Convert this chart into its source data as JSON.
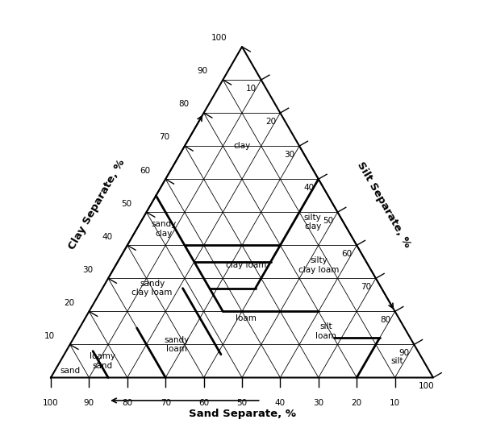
{
  "bg_color": "#ffffff",
  "thin_lw": 0.6,
  "thick_lw": 2.0,
  "outer_lw": 1.5,
  "tick_values": [
    10,
    20,
    30,
    40,
    50,
    60,
    70,
    80,
    90,
    100
  ],
  "soil_labels": [
    {
      "name": "clay",
      "clay": 70,
      "silt": 15
    },
    {
      "name": "silty\nclay",
      "clay": 47,
      "silt": 45
    },
    {
      "name": "sandy\nclay",
      "clay": 45,
      "silt": 7
    },
    {
      "name": "clay loam",
      "clay": 34,
      "silt": 34
    },
    {
      "name": "silty\nclay loam",
      "clay": 34,
      "silt": 53
    },
    {
      "name": "sandy\nclay loam",
      "clay": 27,
      "silt": 13
    },
    {
      "name": "loam",
      "clay": 18,
      "silt": 42
    },
    {
      "name": "silt\nloam",
      "clay": 14,
      "silt": 65
    },
    {
      "name": "sandy\nloam",
      "clay": 10,
      "silt": 28
    },
    {
      "name": "loamy\nsand",
      "clay": 5,
      "silt": 11
    },
    {
      "name": "sand",
      "clay": 2,
      "silt": 4
    },
    {
      "name": "silt",
      "clay": 5,
      "silt": 88
    }
  ],
  "clay_label": "Clay Separate, %",
  "silt_label": "Silt Separate, %",
  "sand_label": "Sand Separate, %",
  "thick_boundaries": [
    [
      [
        55,
        0
      ],
      [
        35,
        20
      ]
    ],
    [
      [
        35,
        20
      ],
      [
        20,
        35
      ]
    ],
    [
      [
        40,
        15
      ],
      [
        40,
        40
      ]
    ],
    [
      [
        27,
        40
      ],
      [
        60,
        40
      ]
    ],
    [
      [
        35,
        20
      ],
      [
        35,
        40
      ]
    ],
    [
      [
        27,
        28
      ],
      [
        27,
        40
      ]
    ],
    [
      [
        20,
        35
      ],
      [
        20,
        60
      ]
    ],
    [
      [
        27,
        28
      ],
      [
        20,
        35
      ]
    ],
    [
      [
        12,
        0
      ],
      [
        12,
        20
      ]
    ],
    [
      [
        8,
        0
      ],
      [
        8,
        12
      ]
    ],
    [
      [
        0,
        80
      ],
      [
        12,
        68
      ]
    ],
    [
      [
        12,
        20
      ],
      [
        12,
        68
      ]
    ],
    [
      [
        0,
        90
      ],
      [
        8,
        82
      ]
    ],
    [
      [
        8,
        12
      ],
      [
        8,
        82
      ]
    ]
  ]
}
